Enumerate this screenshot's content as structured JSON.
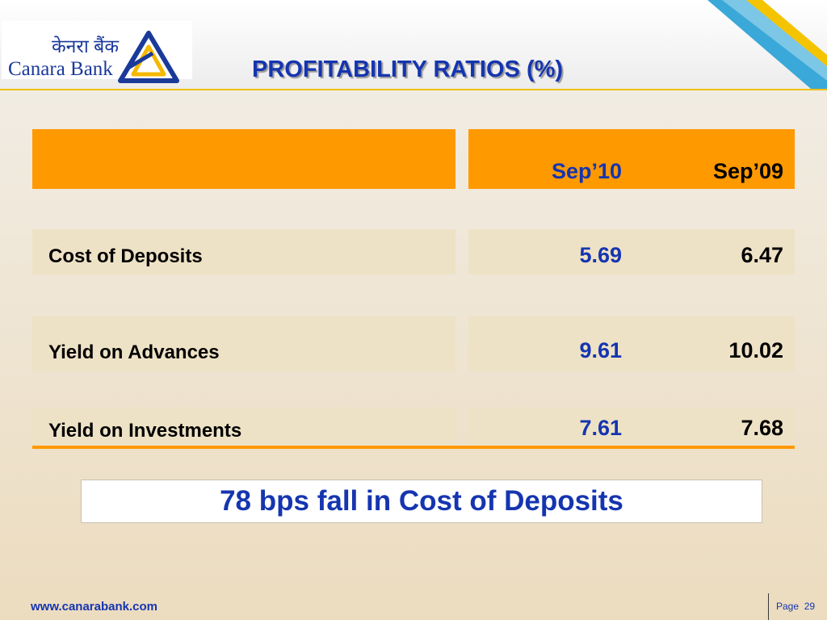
{
  "logo": {
    "hindi_name": "केनरा बैंक",
    "english_name": "Canara Bank",
    "mark_color": "#1a3a9a",
    "accent_color": "#f5b800"
  },
  "title": "PROFITABILITY RATIOS (%)",
  "table": {
    "header_color": "#ff9900",
    "columns": [
      "Sep’10",
      "Sep’09"
    ],
    "rows": [
      {
        "label": "Cost of Deposits",
        "sep10": "5.69",
        "sep09": "6.47"
      },
      {
        "label": "Yield on Advances",
        "sep10": "9.61",
        "sep09": "10.02"
      },
      {
        "label": "Yield on Investments",
        "sep10": "7.61",
        "sep09": "7.68"
      }
    ]
  },
  "note": "78 bps fall in Cost of Deposits",
  "footer": {
    "url": "www.canarabank.com",
    "page_label": "Page",
    "page_number": "29"
  }
}
